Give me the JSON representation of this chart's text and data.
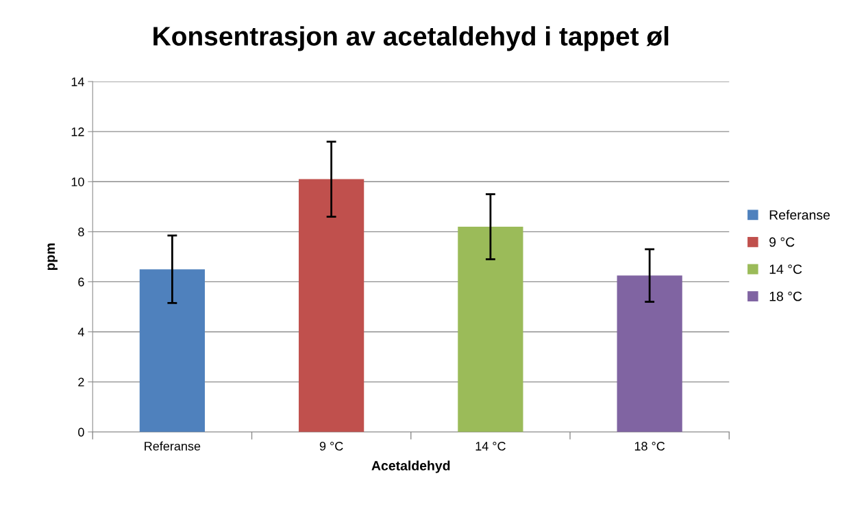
{
  "chart_data": {
    "type": "bar",
    "title": "Konsentrasjon av acetaldehyd i tappet øl",
    "xlabel": "Acetaldehyd",
    "ylabel": "ppm",
    "categories": [
      "Referanse",
      "9 °C",
      "14 °C",
      "18 °C"
    ],
    "series": [
      {
        "name": "Referanse",
        "color": "#4f81bd",
        "values": [
          6.5,
          null,
          null,
          null
        ],
        "errors": [
          1.35,
          null,
          null,
          null
        ]
      },
      {
        "name": "9 °C",
        "color": "#c0504d",
        "values": [
          null,
          10.1,
          null,
          null
        ],
        "errors": [
          null,
          1.5,
          null,
          null
        ]
      },
      {
        "name": "14 °C",
        "color": "#9bbb59",
        "values": [
          null,
          null,
          8.2,
          null
        ],
        "errors": [
          null,
          null,
          1.3,
          null
        ]
      },
      {
        "name": "18 °C",
        "color": "#8064a2",
        "values": [
          null,
          null,
          null,
          6.25
        ],
        "errors": [
          null,
          null,
          null,
          1.05
        ]
      }
    ],
    "ylim": [
      0,
      14
    ],
    "yticks": [
      0,
      2,
      4,
      6,
      8,
      10,
      12,
      14
    ],
    "grid": "y",
    "legend": "right"
  }
}
